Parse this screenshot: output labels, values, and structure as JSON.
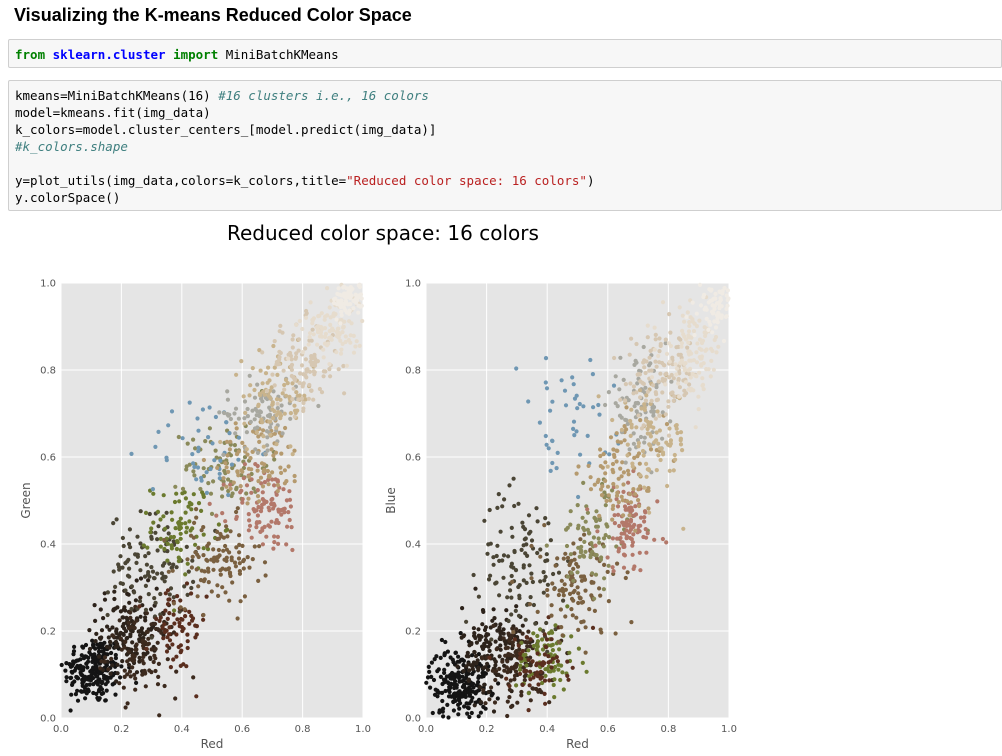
{
  "heading": "Visualizing the K-means Reduced Color Space",
  "cells": {
    "cell1": [
      [
        {
          "t": "from",
          "c": "kw"
        },
        {
          "t": " "
        },
        {
          "t": "sklearn.cluster",
          "c": "mod"
        },
        {
          "t": " "
        },
        {
          "t": "import",
          "c": "kw"
        },
        {
          "t": " MiniBatchKMeans"
        }
      ]
    ],
    "cell2": [
      [
        {
          "t": "kmeans=MiniBatchKMeans(16) "
        },
        {
          "t": "#16 clusters i.e., 16 colors",
          "c": "cm"
        }
      ],
      [
        {
          "t": "model=kmeans.fit(img_data)"
        }
      ],
      [
        {
          "t": "k_colors=model.cluster_centers_[model.predict(img_data)]"
        }
      ],
      [
        {
          "t": "#k_colors.shape",
          "c": "cm"
        }
      ],
      [
        {
          "t": ""
        }
      ],
      [
        {
          "t": "y=plot_utils(img_data,colors=k_colors,title="
        },
        {
          "t": "\"Reduced color space: 16 colors\"",
          "c": "str"
        },
        {
          "t": ")"
        }
      ],
      [
        {
          "t": "y.colorSpace()"
        }
      ]
    ]
  },
  "figure_title": "Reduced color space: 16 colors",
  "chart_data": [
    {
      "type": "scatter",
      "xlabel": "Red",
      "ylabel": "Green",
      "xlim": [
        0,
        1
      ],
      "ylim": [
        0,
        1
      ],
      "xticks": [
        "0.0",
        "0.2",
        "0.4",
        "0.6",
        "0.8",
        "1.0"
      ],
      "yticks": [
        "0.0",
        "0.2",
        "0.4",
        "0.6",
        "0.8",
        "1.0"
      ],
      "grid": true,
      "background": "#e5e5e5",
      "clusters": [
        {
          "color": "#141414",
          "x": [
            0.11,
            0.05
          ],
          "y": [
            0.11,
            0.04
          ],
          "n": 220
        },
        {
          "color": "#2d231b",
          "x": [
            0.22,
            0.05
          ],
          "y": [
            0.2,
            0.05
          ],
          "n": 150
        },
        {
          "color": "#3c2a1e",
          "x": [
            0.27,
            0.06
          ],
          "y": [
            0.15,
            0.05
          ],
          "n": 110
        },
        {
          "color": "#4a4535",
          "x": [
            0.3,
            0.07
          ],
          "y": [
            0.35,
            0.06
          ],
          "n": 110
        },
        {
          "color": "#6b7a2e",
          "x": [
            0.4,
            0.05
          ],
          "y": [
            0.44,
            0.05
          ],
          "n": 80
        },
        {
          "color": "#5a2e1e",
          "x": [
            0.38,
            0.05
          ],
          "y": [
            0.2,
            0.05
          ],
          "n": 70
        },
        {
          "color": "#7a6040",
          "x": [
            0.52,
            0.07
          ],
          "y": [
            0.36,
            0.05
          ],
          "n": 110
        },
        {
          "color": "#8a8a5a",
          "x": [
            0.55,
            0.07
          ],
          "y": [
            0.58,
            0.05
          ],
          "n": 80
        },
        {
          "color": "#6f97b3",
          "x": [
            0.47,
            0.09
          ],
          "y": [
            0.62,
            0.06
          ],
          "n": 45
        },
        {
          "color": "#b3786a",
          "x": [
            0.68,
            0.06
          ],
          "y": [
            0.48,
            0.05
          ],
          "n": 100
        },
        {
          "color": "#b59a6e",
          "x": [
            0.66,
            0.07
          ],
          "y": [
            0.6,
            0.05
          ],
          "n": 90
        },
        {
          "color": "#a8a8a0",
          "x": [
            0.66,
            0.06
          ],
          "y": [
            0.7,
            0.04
          ],
          "n": 80
        },
        {
          "color": "#c8b38c",
          "x": [
            0.72,
            0.06
          ],
          "y": [
            0.74,
            0.05
          ],
          "n": 90
        },
        {
          "color": "#d6c7b2",
          "x": [
            0.8,
            0.06
          ],
          "y": [
            0.81,
            0.05
          ],
          "n": 110
        },
        {
          "color": "#e6dccd",
          "x": [
            0.9,
            0.05
          ],
          "y": [
            0.9,
            0.04
          ],
          "n": 110
        },
        {
          "color": "#f0ebe4",
          "x": [
            0.96,
            0.03
          ],
          "y": [
            0.96,
            0.02
          ],
          "n": 80
        }
      ]
    },
    {
      "type": "scatter",
      "xlabel": "Red",
      "ylabel": "Blue",
      "xlim": [
        0,
        1
      ],
      "ylim": [
        0,
        1
      ],
      "xticks": [
        "0.0",
        "0.2",
        "0.4",
        "0.6",
        "0.8",
        "1.0"
      ],
      "yticks": [
        "0.0",
        "0.2",
        "0.4",
        "0.6",
        "0.8",
        "1.0"
      ],
      "grid": true,
      "background": "#e5e5e5",
      "clusters": [
        {
          "color": "#141414",
          "x": [
            0.11,
            0.05
          ],
          "y": [
            0.08,
            0.04
          ],
          "n": 220
        },
        {
          "color": "#2d231b",
          "x": [
            0.22,
            0.05
          ],
          "y": [
            0.16,
            0.05
          ],
          "n": 150
        },
        {
          "color": "#3c2a1e",
          "x": [
            0.3,
            0.06
          ],
          "y": [
            0.12,
            0.05
          ],
          "n": 110
        },
        {
          "color": "#4a4535",
          "x": [
            0.32,
            0.07
          ],
          "y": [
            0.36,
            0.08
          ],
          "n": 110
        },
        {
          "color": "#6b7a2e",
          "x": [
            0.4,
            0.05
          ],
          "y": [
            0.14,
            0.04
          ],
          "n": 80
        },
        {
          "color": "#5a2e1e",
          "x": [
            0.37,
            0.05
          ],
          "y": [
            0.12,
            0.04
          ],
          "n": 60
        },
        {
          "color": "#7a6040",
          "x": [
            0.5,
            0.07
          ],
          "y": [
            0.3,
            0.06
          ],
          "n": 110
        },
        {
          "color": "#8a8a5a",
          "x": [
            0.55,
            0.06
          ],
          "y": [
            0.42,
            0.06
          ],
          "n": 80
        },
        {
          "color": "#6f97b3",
          "x": [
            0.46,
            0.08
          ],
          "y": [
            0.68,
            0.07
          ],
          "n": 45
        },
        {
          "color": "#b3786a",
          "x": [
            0.67,
            0.05
          ],
          "y": [
            0.44,
            0.05
          ],
          "n": 100
        },
        {
          "color": "#b59a6e",
          "x": [
            0.65,
            0.07
          ],
          "y": [
            0.56,
            0.06
          ],
          "n": 90
        },
        {
          "color": "#a8a8a0",
          "x": [
            0.7,
            0.05
          ],
          "y": [
            0.72,
            0.05
          ],
          "n": 80
        },
        {
          "color": "#c8b38c",
          "x": [
            0.75,
            0.06
          ],
          "y": [
            0.64,
            0.06
          ],
          "n": 90
        },
        {
          "color": "#d6c7b2",
          "x": [
            0.78,
            0.06
          ],
          "y": [
            0.78,
            0.05
          ],
          "n": 110
        },
        {
          "color": "#e6dccd",
          "x": [
            0.88,
            0.05
          ],
          "y": [
            0.84,
            0.05
          ],
          "n": 110
        },
        {
          "color": "#f0ebe4",
          "x": [
            0.96,
            0.03
          ],
          "y": [
            0.95,
            0.03
          ],
          "n": 80
        }
      ]
    }
  ]
}
